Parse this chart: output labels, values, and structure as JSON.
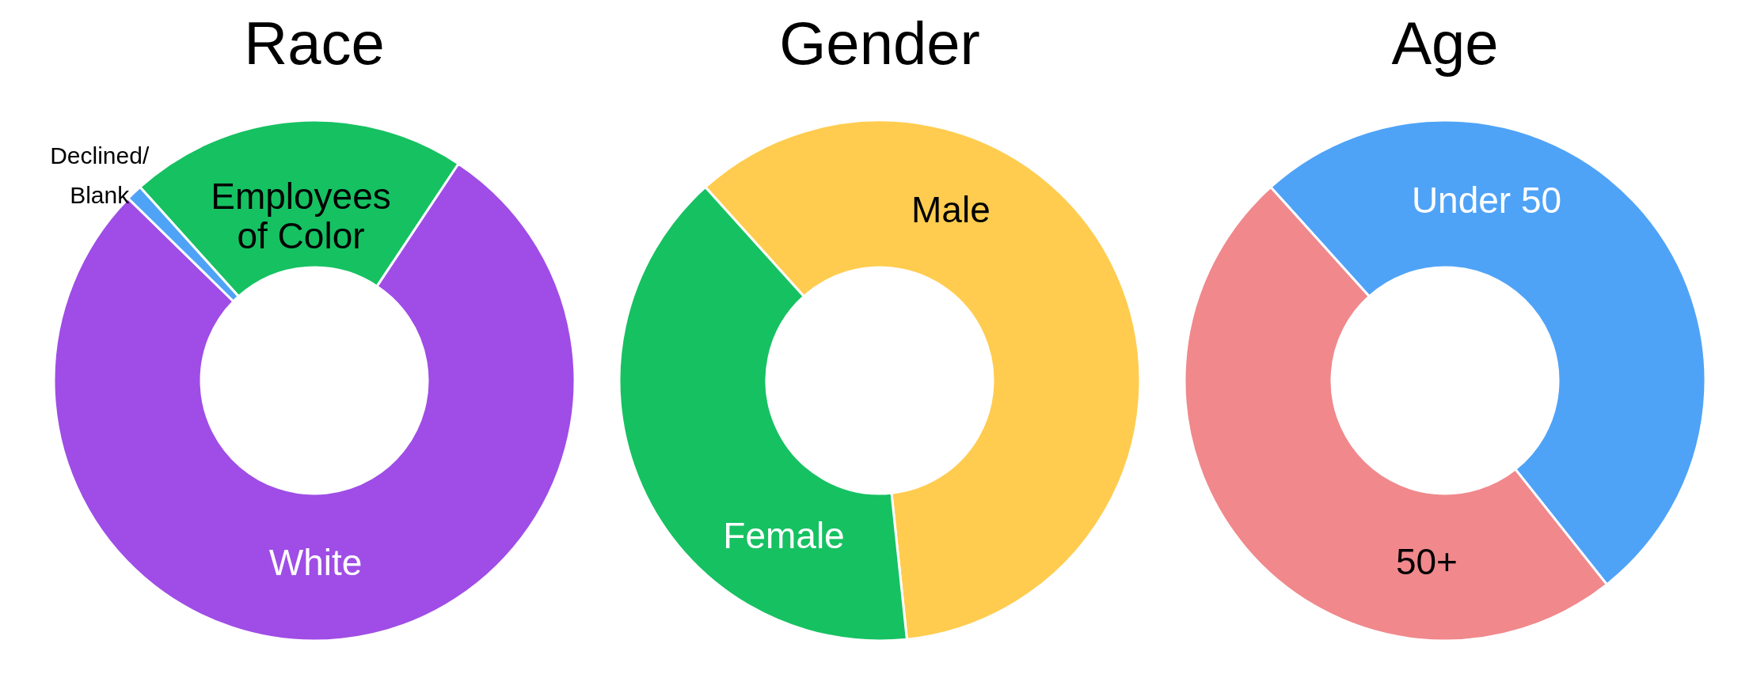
{
  "chart_data": [
    {
      "type": "donut",
      "title": "Race",
      "categories": [
        "Employees of Color",
        "White",
        "Declined/Blank"
      ],
      "values": [
        21,
        78,
        1
      ],
      "colors": [
        "#16c162",
        "#9f4de6",
        "#4fa3f7"
      ]
    },
    {
      "type": "donut",
      "title": "Gender",
      "categories": [
        "Male",
        "Female"
      ],
      "values": [
        60,
        40
      ],
      "colors": [
        "#ffcc4f",
        "#16c162"
      ]
    },
    {
      "type": "donut",
      "title": "Age",
      "categories": [
        "Under 50",
        "50+"
      ],
      "values": [
        51,
        49
      ],
      "colors": [
        "#4fa3f7",
        "#f0888c"
      ]
    }
  ]
}
